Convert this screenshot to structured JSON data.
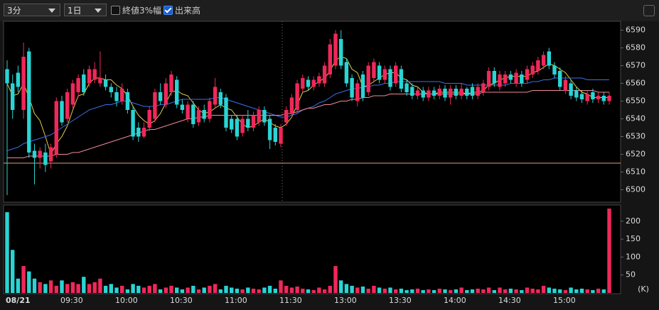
{
  "toolbar": {
    "interval": "3分",
    "period": "1日",
    "options": [
      {
        "label": "終値3%幅",
        "checked": false
      },
      {
        "label": "出来高",
        "checked": true
      }
    ]
  },
  "chart_data": {
    "type": "candlestick",
    "categories": [
      "08/21",
      null,
      null,
      null,
      null,
      null,
      null,
      null,
      null,
      null,
      "09:30",
      null,
      null,
      null,
      null,
      null,
      null,
      null,
      null,
      null,
      "10:00",
      null,
      null,
      null,
      null,
      null,
      null,
      null,
      null,
      null,
      "10:30",
      null,
      null,
      null,
      null,
      null,
      null,
      null,
      null,
      null,
      "11:00",
      null,
      null,
      null,
      null,
      null,
      null,
      null,
      null,
      null,
      "11:30",
      null,
      null,
      null,
      null,
      null,
      null,
      null,
      null,
      null,
      "13:00",
      null,
      null,
      null,
      null,
      null,
      null,
      null,
      null,
      null,
      "13:30",
      null,
      null,
      null,
      null,
      null,
      null,
      null,
      null,
      null,
      "14:00",
      null,
      null,
      null,
      null,
      null,
      null,
      null,
      null,
      null,
      "14:30",
      null,
      null,
      null,
      null,
      null,
      null,
      null,
      null,
      null,
      "15:00",
      null,
      null,
      null,
      null,
      null,
      null,
      null,
      null,
      null,
      null
    ],
    "open": [
      6568,
      6560,
      6566,
      6545,
      6578,
      6522,
      6518,
      6521,
      6516,
      6520,
      6550,
      6540,
      6548,
      6555,
      6565,
      6560,
      6562,
      6560,
      6562,
      6558,
      6555,
      6550,
      6555,
      6545,
      6535,
      6530,
      6535,
      6540,
      6555,
      6548,
      6555,
      6562,
      6548,
      6540,
      6548,
      6538,
      6545,
      6540,
      6548,
      6555,
      6552,
      6540,
      6540,
      6532,
      6540,
      6535,
      6538,
      6545,
      6540,
      6535,
      6526,
      6538,
      6543,
      6545,
      6557,
      6562,
      6558,
      6560,
      6560,
      6565,
      6570,
      6585,
      6572,
      6563,
      6550,
      6565,
      6555,
      6563,
      6570,
      6562,
      6568,
      6560,
      6568,
      6560,
      6558,
      6553,
      6556,
      6552,
      6556,
      6553,
      6557,
      6552,
      6557,
      6553,
      6557,
      6558,
      6553,
      6555,
      6558,
      6567,
      6558,
      6560,
      6565,
      6560,
      6565,
      6562,
      6565,
      6567,
      6570,
      6578,
      6570,
      6567,
      6556,
      6560,
      6556,
      6554,
      6550,
      6555,
      6551,
      6553,
      6550
    ],
    "high": [
      6573,
      6565,
      6570,
      6583,
      6580,
      6526,
      6524,
      6526,
      6526,
      6552,
      6553,
      6557,
      6562,
      6565,
      6568,
      6570,
      6572,
      6578,
      6565,
      6560,
      6558,
      6560,
      6557,
      6547,
      6538,
      6538,
      6547,
      6557,
      6560,
      6563,
      6567,
      6564,
      6551,
      6550,
      6550,
      6547,
      6548,
      6552,
      6563,
      6557,
      6554,
      6542,
      6542,
      6542,
      6545,
      6544,
      6547,
      6547,
      6542,
      6537,
      6537,
      6547,
      6554,
      6562,
      6565,
      6564,
      6564,
      6566,
      6572,
      6585,
      6590,
      6590,
      6574,
      6565,
      6562,
      6567,
      6572,
      6574,
      6572,
      6570,
      6570,
      6572,
      6570,
      6562,
      6560,
      6558,
      6558,
      6558,
      6558,
      6559,
      6559,
      6559,
      6559,
      6560,
      6558,
      6560,
      6560,
      6562,
      6569,
      6569,
      6567,
      6567,
      6567,
      6568,
      6567,
      6570,
      6572,
      6575,
      6578,
      6580,
      6572,
      6569,
      6564,
      6562,
      6558,
      6556,
      6556,
      6557,
      6555,
      6555,
      6555
    ],
    "low": [
      6497,
      6540,
      6555,
      6540,
      6518,
      6503,
      6512,
      6510,
      6512,
      6518,
      6536,
      6538,
      6546,
      6552,
      6553,
      6558,
      6560,
      6558,
      6556,
      6552,
      6547,
      6548,
      6543,
      6528,
      6527,
      6529,
      6533,
      6538,
      6548,
      6546,
      6553,
      6546,
      6543,
      6538,
      6535,
      6536,
      6538,
      6538,
      6546,
      6546,
      6533,
      6532,
      6528,
      6530,
      6533,
      6533,
      6536,
      6536,
      6523,
      6525,
      6524,
      6536,
      6541,
      6543,
      6555,
      6556,
      6556,
      6558,
      6558,
      6563,
      6568,
      6568,
      6558,
      6550,
      6547,
      6550,
      6553,
      6561,
      6560,
      6560,
      6556,
      6558,
      6555,
      6553,
      6551,
      6551,
      6550,
      6550,
      6551,
      6551,
      6550,
      6548,
      6551,
      6551,
      6551,
      6551,
      6551,
      6553,
      6556,
      6558,
      6556,
      6558,
      6560,
      6558,
      6558,
      6560,
      6563,
      6565,
      6568,
      6568,
      6563,
      6556,
      6554,
      6551,
      6550,
      6549,
      6548,
      6549,
      6549,
      6548,
      6548
    ],
    "close": [
      6560,
      6545,
      6558,
      6575,
      6521,
      6518,
      6522,
      6514,
      6524,
      6550,
      6538,
      6555,
      6560,
      6563,
      6555,
      6568,
      6568,
      6563,
      6558,
      6555,
      6550,
      6557,
      6545,
      6530,
      6530,
      6535,
      6545,
      6555,
      6550,
      6560,
      6565,
      6548,
      6545,
      6548,
      6537,
      6545,
      6540,
      6550,
      6558,
      6548,
      6535,
      6534,
      6530,
      6540,
      6535,
      6542,
      6545,
      6538,
      6528,
      6527,
      6535,
      6545,
      6552,
      6560,
      6563,
      6558,
      6562,
      6564,
      6570,
      6582,
      6588,
      6570,
      6560,
      6552,
      6560,
      6552,
      6570,
      6572,
      6562,
      6568,
      6558,
      6570,
      6557,
      6555,
      6553,
      6556,
      6552,
      6556,
      6553,
      6557,
      6552,
      6557,
      6553,
      6557,
      6553,
      6553,
      6558,
      6560,
      6567,
      6560,
      6565,
      6565,
      6562,
      6566,
      6560,
      6568,
      6570,
      6573,
      6576,
      6570,
      6565,
      6558,
      6562,
      6553,
      6552,
      6551,
      6554,
      6551,
      6553,
      6550,
      6553
    ],
    "up_color": "#f0285a",
    "down_color": "#2ad4d4",
    "ylim": [
      6493,
      6595
    ],
    "yticks": [
      6500,
      6510,
      6520,
      6530,
      6540,
      6550,
      6560,
      6570,
      6580,
      6590
    ],
    "moving_averages": [
      {
        "color": "#e6cf45",
        "values": [
          6560,
          6553,
          6554,
          6560,
          6552,
          6543,
          6539,
          6530,
          6520,
          6526,
          6530,
          6536,
          6545,
          6553,
          6554,
          6560,
          6563,
          6563,
          6562,
          6562,
          6559,
          6557,
          6553,
          6547,
          6542,
          6539,
          6537,
          6539,
          6543,
          6549,
          6555,
          6556,
          6554,
          6553,
          6549,
          6545,
          6543,
          6544,
          6546,
          6548,
          6546,
          6545,
          6541,
          6537,
          6535,
          6536,
          6538,
          6540,
          6538,
          6536,
          6535,
          6537,
          6541,
          6548,
          6555,
          6556,
          6559,
          6561,
          6563,
          6567,
          6573,
          6575,
          6574,
          6568,
          6566,
          6558,
          6559,
          6561,
          6563,
          6565,
          6566,
          6566,
          6563,
          6562,
          6559,
          6558,
          6555,
          6554,
          6554,
          6555,
          6555,
          6555,
          6555,
          6555,
          6554,
          6555,
          6555,
          6556,
          6559,
          6560,
          6562,
          6563,
          6564,
          6564,
          6564,
          6564,
          6566,
          6567,
          6569,
          6571,
          6570,
          6568,
          6566,
          6562,
          6558,
          6555,
          6554,
          6552,
          6552,
          6552,
          6552
        ]
      },
      {
        "color": "#3d6fe8",
        "values": [
          6522,
          6523,
          6524,
          6526,
          6527,
          6528,
          6529,
          6530,
          6531,
          6533,
          6535,
          6537,
          6539,
          6541,
          6543,
          6545,
          6546,
          6547,
          6548,
          6548,
          6549,
          6550,
          6550,
          6549,
          6548,
          6547,
          6547,
          6547,
          6548,
          6548,
          6549,
          6550,
          6551,
          6551,
          6551,
          6551,
          6551,
          6551,
          6552,
          6552,
          6551,
          6550,
          6549,
          6548,
          6547,
          6546,
          6545,
          6544,
          6543,
          6542,
          6541,
          6541,
          6542,
          6543,
          6545,
          6546,
          6547,
          6549,
          6550,
          6552,
          6554,
          6555,
          6556,
          6557,
          6557,
          6558,
          6558,
          6559,
          6559,
          6560,
          6560,
          6561,
          6561,
          6561,
          6561,
          6561,
          6561,
          6561,
          6561,
          6561,
          6560,
          6560,
          6560,
          6560,
          6559,
          6559,
          6559,
          6559,
          6559,
          6559,
          6559,
          6559,
          6560,
          6560,
          6560,
          6560,
          6561,
          6561,
          6562,
          6562,
          6563,
          6563,
          6563,
          6563,
          6563,
          6563,
          6562,
          6562,
          6562,
          6562,
          6562
        ]
      },
      {
        "color": "#f08a9a",
        "values": [
          6518,
          6518,
          6518,
          6518,
          6519,
          6519,
          6519,
          6519,
          6519,
          6520,
          6520,
          6520,
          6521,
          6521,
          6522,
          6523,
          6524,
          6525,
          6526,
          6527,
          6528,
          6529,
          6530,
          6531,
          6532,
          6533,
          6534,
          6534,
          6535,
          6536,
          6537,
          6538,
          6539,
          6540,
          6540,
          6541,
          6541,
          6542,
          6542,
          6542,
          6542,
          6542,
          6542,
          6542,
          6542,
          6542,
          6542,
          6542,
          6542,
          6542,
          6542,
          6543,
          6543,
          6544,
          6545,
          6546,
          6546,
          6547,
          6548,
          6548,
          6549,
          6550,
          6550,
          6551,
          6551,
          6552,
          6552,
          6553,
          6553,
          6553,
          6554,
          6554,
          6554,
          6554,
          6554,
          6554,
          6554,
          6554,
          6554,
          6554,
          6554,
          6554,
          6554,
          6554,
          6554,
          6554,
          6554,
          6555,
          6555,
          6555,
          6555,
          6555,
          6555,
          6555,
          6555,
          6555,
          6556,
          6556,
          6556,
          6556,
          6556,
          6556,
          6556,
          6556,
          6556,
          6556,
          6556,
          6556,
          6555,
          6555,
          6555
        ]
      }
    ],
    "reference_line": {
      "value": 6515,
      "color": "#e8a070"
    },
    "volume": {
      "type": "bar",
      "values": [
        225,
        120,
        40,
        75,
        60,
        40,
        30,
        25,
        35,
        20,
        35,
        25,
        30,
        25,
        45,
        25,
        30,
        40,
        20,
        25,
        15,
        20,
        10,
        25,
        20,
        15,
        20,
        25,
        10,
        15,
        20,
        15,
        10,
        15,
        20,
        10,
        15,
        20,
        25,
        10,
        20,
        15,
        12,
        10,
        15,
        12,
        10,
        15,
        20,
        12,
        35,
        20,
        15,
        18,
        12,
        10,
        8,
        15,
        10,
        20,
        75,
        35,
        25,
        20,
        15,
        18,
        12,
        20,
        15,
        12,
        15,
        10,
        12,
        8,
        10,
        12,
        8,
        10,
        8,
        12,
        10,
        8,
        10,
        15,
        8,
        10,
        12,
        10,
        15,
        8,
        15,
        10,
        12,
        10,
        8,
        15,
        12,
        10,
        20,
        15,
        12,
        10,
        8,
        15,
        10,
        12,
        10,
        8,
        12,
        10,
        235
      ],
      "ylim": [
        0,
        243
      ],
      "yticks": [
        50,
        100,
        150,
        200
      ],
      "unit": "(K)"
    }
  }
}
